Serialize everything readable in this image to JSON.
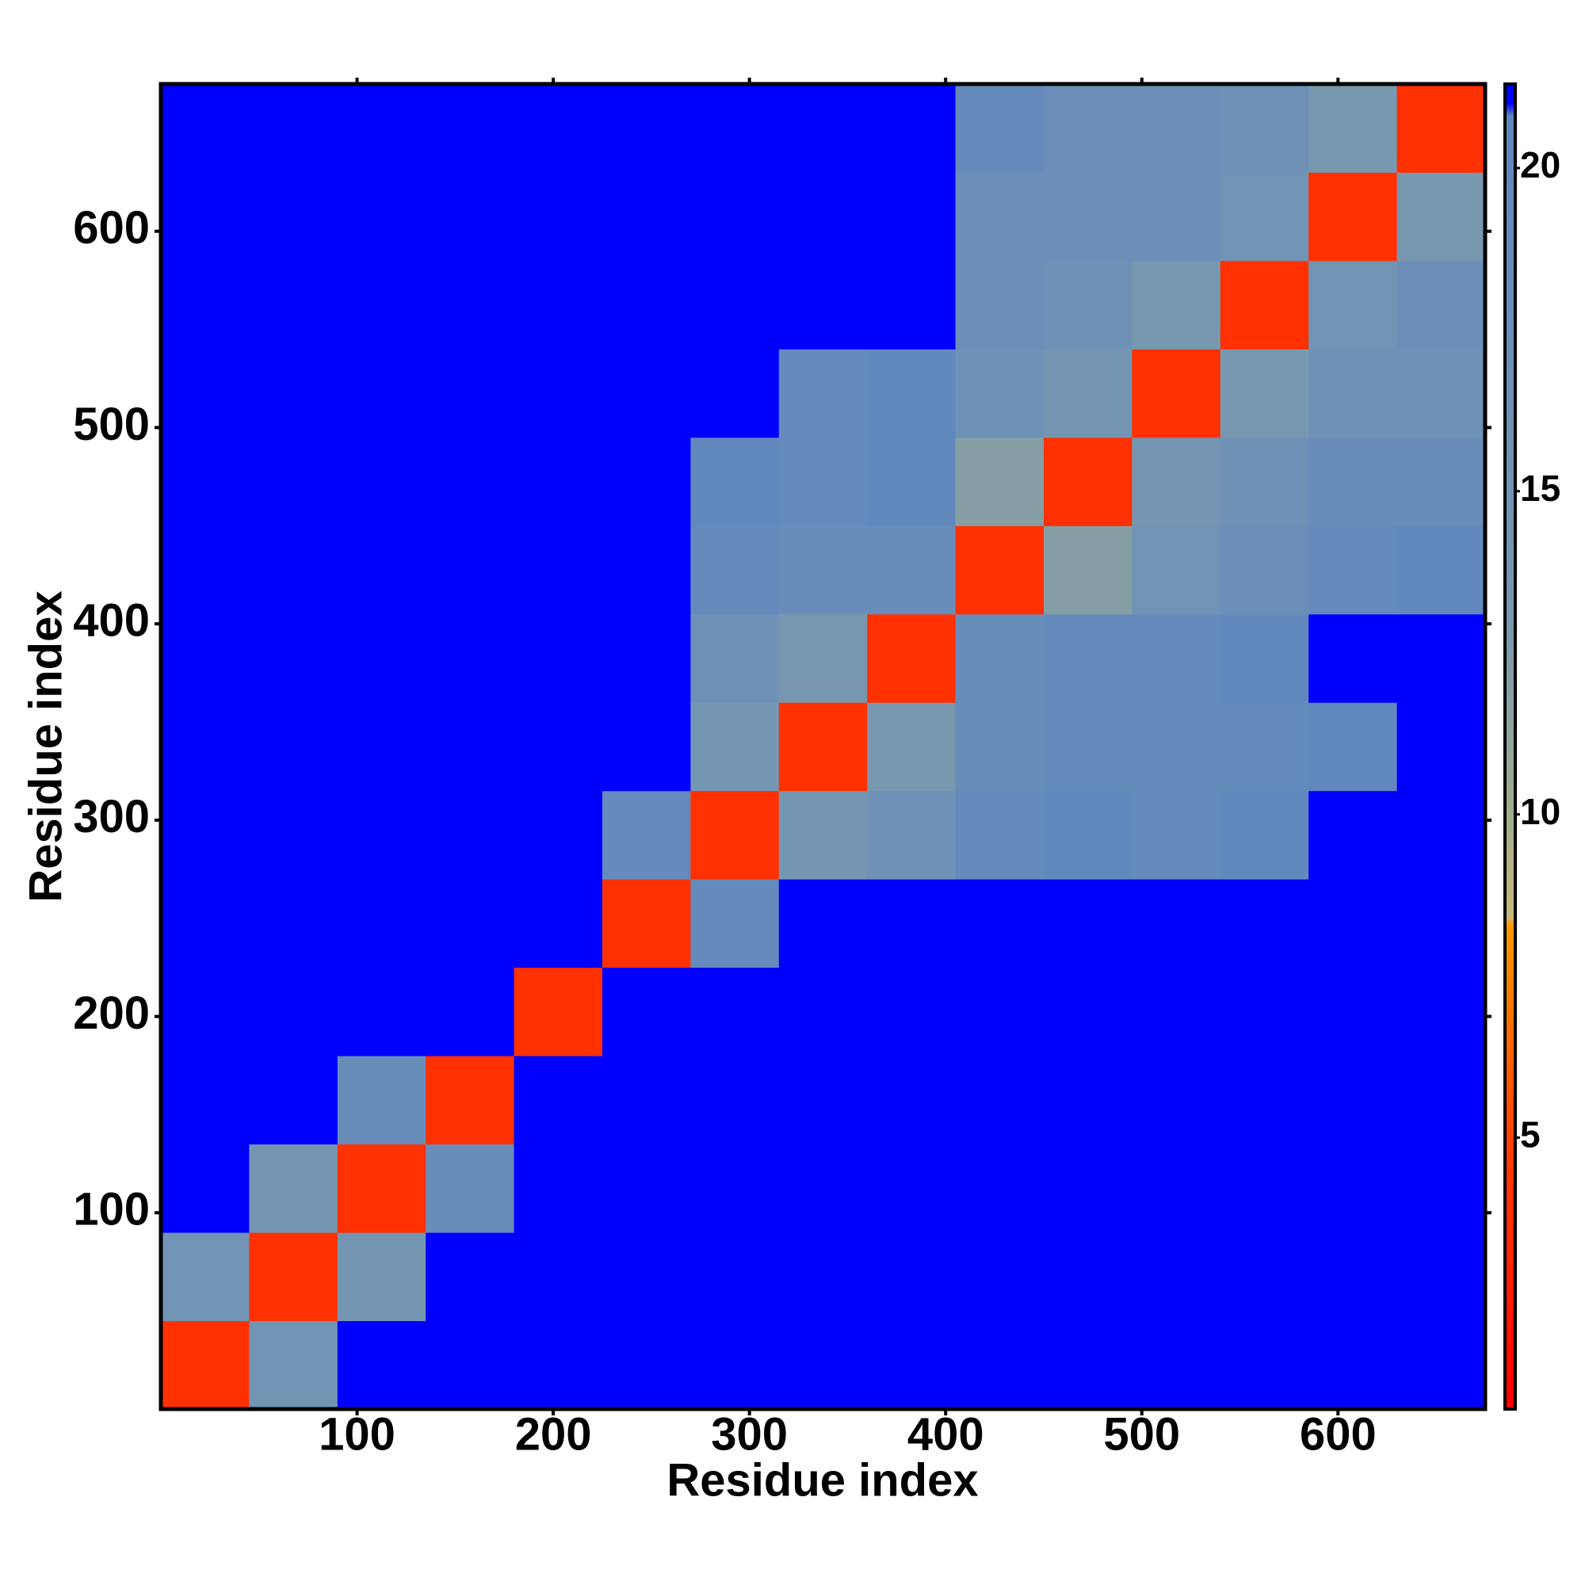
{
  "chart_data": {
    "type": "heatmap",
    "x_label": "Residue index",
    "y_label": "Residue index",
    "x_bins": [
      0,
      45,
      90,
      135,
      180,
      225,
      270,
      315,
      360,
      405,
      450,
      495,
      540,
      585,
      630,
      675
    ],
    "y_bins": [
      0,
      45,
      90,
      135,
      180,
      225,
      270,
      315,
      360,
      405,
      450,
      495,
      540,
      585,
      630,
      675
    ],
    "values": [
      [
        4,
        15,
        21,
        21,
        21,
        21,
        21,
        21,
        21,
        21,
        21,
        21,
        21,
        21,
        21
      ],
      [
        15,
        4,
        14,
        21,
        21,
        21,
        21,
        21,
        21,
        21,
        21,
        21,
        21,
        21,
        21
      ],
      [
        21,
        14,
        4,
        18,
        21,
        21,
        21,
        21,
        21,
        21,
        21,
        21,
        21,
        21,
        21
      ],
      [
        21,
        21,
        18,
        4,
        21,
        21,
        21,
        21,
        21,
        21,
        21,
        21,
        21,
        21,
        21
      ],
      [
        21,
        21,
        21,
        21,
        4,
        21,
        21,
        21,
        21,
        21,
        21,
        21,
        21,
        21,
        21
      ],
      [
        21,
        21,
        21,
        21,
        21,
        4,
        19,
        21,
        21,
        21,
        21,
        21,
        21,
        21,
        21
      ],
      [
        21,
        21,
        21,
        21,
        21,
        19,
        4,
        14,
        16,
        19,
        20,
        19,
        20,
        21,
        21
      ],
      [
        21,
        21,
        21,
        21,
        21,
        21,
        14,
        4,
        13,
        18,
        19,
        19,
        19,
        20,
        21
      ],
      [
        21,
        21,
        21,
        21,
        21,
        21,
        16,
        13,
        4,
        18,
        19,
        19,
        20,
        21,
        21
      ],
      [
        21,
        21,
        21,
        21,
        21,
        21,
        19,
        18,
        18,
        4,
        12,
        15,
        17,
        19,
        20
      ],
      [
        21,
        21,
        21,
        21,
        21,
        21,
        20,
        19,
        20,
        12,
        4,
        14,
        16,
        18,
        18
      ],
      [
        21,
        21,
        21,
        21,
        21,
        21,
        21,
        19,
        20,
        16,
        14,
        4,
        13,
        16,
        16
      ],
      [
        21,
        21,
        21,
        21,
        21,
        21,
        21,
        21,
        21,
        17,
        16,
        13,
        4,
        15,
        17
      ],
      [
        21,
        21,
        21,
        21,
        21,
        21,
        21,
        21,
        21,
        17,
        17,
        17,
        15,
        4,
        13
      ],
      [
        21,
        21,
        21,
        21,
        21,
        21,
        21,
        21,
        21,
        19,
        17,
        17,
        16,
        13,
        4
      ]
    ],
    "xlim": [
      0,
      675
    ],
    "ylim": [
      0,
      675
    ],
    "xticks": [
      100,
      200,
      300,
      400,
      500,
      600
    ],
    "yticks": [
      100,
      200,
      300,
      400,
      500,
      600
    ],
    "colorbar": {
      "clim": [
        0.8,
        21.3
      ],
      "ticks": [
        5,
        10,
        15,
        20
      ],
      "stops": [
        {
          "value": 0.8,
          "color": "#ff0000"
        },
        {
          "value": 5,
          "color": "#ff4000"
        },
        {
          "value": 8.3,
          "color": "#ff9900"
        },
        {
          "value": 8.4,
          "color": "#c9b878"
        },
        {
          "value": 10,
          "color": "#9fae8c"
        },
        {
          "value": 13,
          "color": "#7898b0"
        },
        {
          "value": 20.8,
          "color": "#5f87bf"
        },
        {
          "value": 21,
          "color": "#0000ff"
        },
        {
          "value": 21.3,
          "color": "#0000ff"
        }
      ]
    }
  }
}
